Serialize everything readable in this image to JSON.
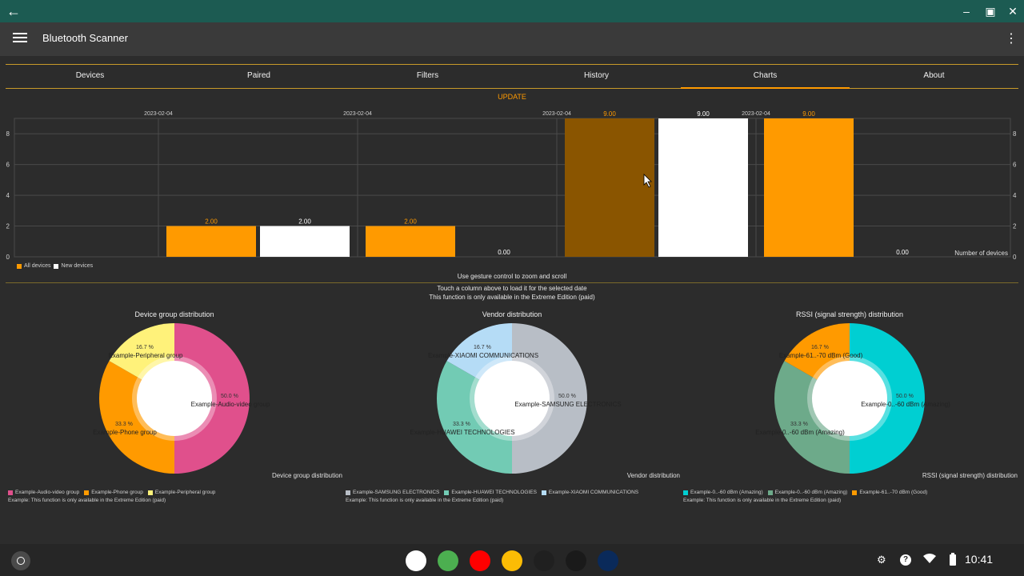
{
  "window": {
    "back_icon": "back-arrow-icon"
  },
  "appbar": {
    "title": "Bluetooth Scanner"
  },
  "tabs": [
    {
      "label": "Devices"
    },
    {
      "label": "Paired"
    },
    {
      "label": "Filters"
    },
    {
      "label": "History"
    },
    {
      "label": "Charts"
    },
    {
      "label": "About"
    }
  ],
  "update_label": "UPDATE",
  "chart_data": [
    {
      "type": "bar",
      "categories": [
        "2023-02-04",
        "2023-02-04",
        "2023-02-04",
        "2023-02-04"
      ],
      "series": [
        {
          "name": "All devices",
          "values": [
            2.0,
            2.0,
            9.0,
            9.0
          ],
          "color": "#ff9a00"
        },
        {
          "name": "New devices",
          "values": [
            2.0,
            0.0,
            9.0,
            0.0
          ],
          "color": "#ffffff"
        }
      ],
      "value_labels": [
        [
          "2.00",
          "2.00",
          "9.00",
          "9.00"
        ],
        [
          "2.00",
          "0.00",
          "9.00",
          "0.00"
        ]
      ],
      "highlight_color": "#8a5500",
      "y_ticks": [
        "0",
        "2",
        "4",
        "6",
        "8"
      ],
      "ylim": [
        0,
        9
      ],
      "ylabel": "Number of devices",
      "legend": "bottom-left",
      "grid": true
    },
    {
      "type": "pie",
      "title": "Device group distribution",
      "description": "Device group distribution",
      "slices": [
        {
          "label": "Example-Audio-video group",
          "value": 50.0,
          "pct": "50.0 %",
          "color": "#e0508c"
        },
        {
          "label": "Example-Phone group",
          "value": 33.3,
          "pct": "33.3 %",
          "color": "#ff9a00"
        },
        {
          "label": "Example-Peripheral group",
          "value": 16.7,
          "pct": "16.7 %",
          "color": "#fff27a"
        }
      ],
      "note": "Example: This function is only available in the Extreme Edition (paid)"
    },
    {
      "type": "pie",
      "title": "Vendor distribution",
      "description": "Vendor distribution",
      "slices": [
        {
          "label": "Example-SAMSUNG ELECTRONICS",
          "value": 50.0,
          "pct": "50.0 %",
          "color": "#b8bec6"
        },
        {
          "label": "Example-HUAWEI TECHNOLOGIES",
          "value": 33.3,
          "pct": "33.3 %",
          "color": "#72cbb4"
        },
        {
          "label": "Example-XIAOMI COMMUNICATIONS",
          "value": 16.7,
          "pct": "16.7 %",
          "color": "#b5dcf6"
        }
      ],
      "note": "Example: This function is only available in the Extreme Edition (paid)"
    },
    {
      "type": "pie",
      "title": "RSSI (signal strength) distribution",
      "description": "RSSI (signal strength) distribution",
      "slices": [
        {
          "label": "Example-0..-60 dBm (Amazing)",
          "value": 50.0,
          "pct": "50.0 %",
          "color": "#00cfd2"
        },
        {
          "label": "Example-0..-60 dBm (Amazing)",
          "value": 33.3,
          "pct": "33.3 %",
          "color": "#6daa8a"
        },
        {
          "label": "Example-61..-70 dBm (Good)",
          "value": 16.7,
          "pct": "16.7 %",
          "color": "#ff9a00"
        }
      ],
      "note": "Example: This function is only available in the Extreme Edition (paid)"
    }
  ],
  "notes": {
    "gesture": "Use gesture control to zoom and scroll",
    "touch": "Touch a column above to load it for the selected date",
    "extreme": "This function is only available in the Extreme Edition (paid)"
  },
  "shelf": {
    "apps": [
      {
        "name": "gmail-icon",
        "color": "#ffffff"
      },
      {
        "name": "chrome-icon",
        "color": "#4caf50"
      },
      {
        "name": "youtube-icon",
        "color": "#ff0000"
      },
      {
        "name": "photos-icon",
        "color": "#fbbc05"
      },
      {
        "name": "bluetooth-scanner-app-icon",
        "color": "#202020"
      },
      {
        "name": "wifi-analyzer-app-icon",
        "color": "#1a1a1a"
      },
      {
        "name": "network-app-icon",
        "color": "#0a2a5a"
      }
    ],
    "time": "10:41"
  }
}
